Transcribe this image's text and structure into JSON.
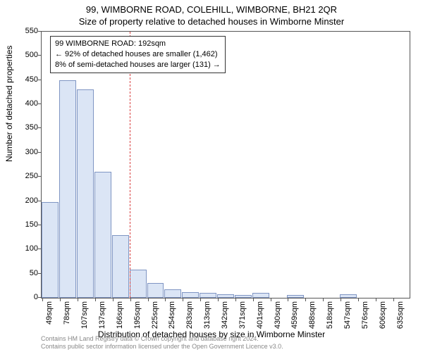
{
  "title_main": "99, WIMBORNE ROAD, COLEHILL, WIMBORNE, BH21 2QR",
  "title_sub": "Size of property relative to detached houses in Wimborne Minster",
  "yaxis_label": "Number of detached properties",
  "xaxis_label": "Distribution of detached houses by size in Wimborne Minster",
  "infobox": {
    "line1": "99 WIMBORNE ROAD: 192sqm",
    "line2": "← 92% of detached houses are smaller (1,462)",
    "line3": "8% of semi-detached houses are larger (131) →"
  },
  "footer_copyright": "Contains HM Land Registry data © Crown copyright and database right 2024.",
  "footer_licence": "Contains public sector information licensed under the Open Government Licence v3.0.",
  "chart": {
    "type": "histogram",
    "categories": [
      "49sqm",
      "78sqm",
      "107sqm",
      "137sqm",
      "166sqm",
      "195sqm",
      "225sqm",
      "254sqm",
      "283sqm",
      "313sqm",
      "342sqm",
      "371sqm",
      "401sqm",
      "430sqm",
      "459sqm",
      "488sqm",
      "518sqm",
      "547sqm",
      "576sqm",
      "606sqm",
      "635sqm"
    ],
    "values": [
      198,
      450,
      430,
      260,
      130,
      58,
      30,
      18,
      12,
      10,
      8,
      6,
      10,
      0,
      6,
      0,
      0,
      8,
      0,
      0,
      0
    ],
    "ylim": [
      0,
      550
    ],
    "ytick_step": 50,
    "bar_fill": "#dbe5f5",
    "bar_border": "#7f95c3",
    "background_color": "#ffffff",
    "axis_color": "#555555",
    "text_color": "#000000",
    "refline_color": "#d94040",
    "refline_category_index": 5,
    "title_fontsize": 13,
    "label_fontsize": 12,
    "tick_fontsize": 11,
    "infobox_fontsize": 11
  }
}
